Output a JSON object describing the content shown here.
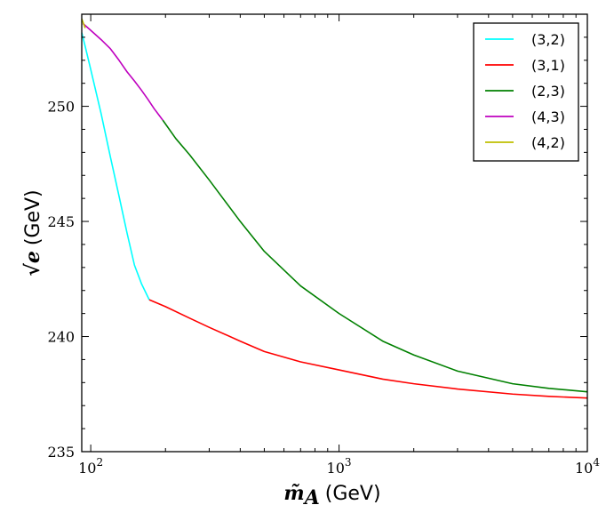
{
  "chart_data": {
    "type": "line",
    "title": "",
    "xlabel_math": "m̃",
    "xlabel_sub": "A",
    "xlabel_unit": "(GeV)",
    "ylabel_math": "√e",
    "ylabel_unit": "(GeV)",
    "xscale": "log",
    "xlim": [
      92,
      10000
    ],
    "ylim": [
      235,
      254
    ],
    "x_ticks": [
      {
        "value": 100,
        "base": "10",
        "exp": "2"
      },
      {
        "value": 1000,
        "base": "10",
        "exp": "3"
      },
      {
        "value": 10000,
        "base": "10",
        "exp": "4"
      }
    ],
    "y_ticks": [
      {
        "value": 235,
        "label": "235"
      },
      {
        "value": 240,
        "label": "240"
      },
      {
        "value": 245,
        "label": "245"
      },
      {
        "value": 250,
        "label": "250"
      }
    ],
    "legend_position": "top-right",
    "series": [
      {
        "name": "(3,2)",
        "color": "#00ffff",
        "x": [
          92,
          95,
          100,
          110,
          120,
          130,
          140,
          150,
          160,
          172
        ],
        "y": [
          253.2,
          252.6,
          251.6,
          249.7,
          247.8,
          246.1,
          244.5,
          243.1,
          242.3,
          241.6
        ]
      },
      {
        "name": "(3,1)",
        "color": "#ff0000",
        "x": [
          172,
          200,
          250,
          300,
          400,
          500,
          700,
          1000,
          1500,
          2000,
          3000,
          5000,
          7000,
          10000
        ],
        "y": [
          241.6,
          241.3,
          240.8,
          240.4,
          239.8,
          239.35,
          238.9,
          238.55,
          238.15,
          237.95,
          237.72,
          237.5,
          237.4,
          237.33
        ]
      },
      {
        "name": "(2,3)",
        "color": "#008000",
        "x": [
          195,
          220,
          250,
          300,
          400,
          500,
          700,
          1000,
          1500,
          2000,
          3000,
          5000,
          7000,
          10000
        ],
        "y": [
          249.4,
          248.6,
          247.9,
          246.8,
          245.0,
          243.7,
          242.2,
          241.0,
          239.8,
          239.2,
          238.5,
          237.95,
          237.75,
          237.6
        ]
      },
      {
        "name": "(4,3)",
        "color": "#bf00bf",
        "x": [
          93,
          100,
          110,
          120,
          130,
          140,
          150,
          160,
          170,
          180,
          195
        ],
        "y": [
          253.6,
          253.3,
          252.9,
          252.5,
          252.0,
          251.5,
          251.1,
          250.7,
          250.3,
          249.9,
          249.4
        ]
      },
      {
        "name": "(4,2)",
        "color": "#bfbf00",
        "x": [
          92,
          93.5,
          95
        ],
        "y": [
          253.8,
          253.6,
          253.4
        ]
      }
    ]
  }
}
